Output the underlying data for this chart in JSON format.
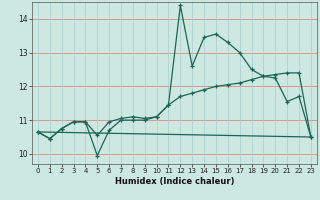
{
  "xlabel": "Humidex (Indice chaleur)",
  "x_ticks": [
    0,
    1,
    2,
    3,
    4,
    5,
    6,
    7,
    8,
    9,
    10,
    11,
    12,
    13,
    14,
    15,
    16,
    17,
    18,
    19,
    20,
    21,
    22,
    23
  ],
  "ylim": [
    9.7,
    14.5
  ],
  "yticks": [
    10,
    11,
    12,
    13,
    14
  ],
  "background_color": "#cce8e0",
  "hgrid_color": "#dd8888",
  "vgrid_color": "#aacccc",
  "line_color": "#1a6655",
  "line1_x": [
    0,
    1,
    2,
    3,
    4,
    5,
    6,
    7,
    8,
    9,
    10,
    11,
    12,
    13,
    14,
    15,
    16,
    17,
    18,
    19,
    20,
    21,
    22,
    23
  ],
  "line1_y": [
    10.65,
    10.45,
    10.75,
    10.95,
    10.95,
    9.95,
    10.7,
    11.0,
    11.0,
    11.0,
    11.1,
    11.45,
    14.4,
    12.6,
    13.45,
    13.55,
    13.3,
    13.0,
    12.5,
    12.3,
    12.25,
    11.55,
    11.7,
    10.5
  ],
  "line2_x": [
    0,
    1,
    2,
    3,
    4,
    5,
    6,
    7,
    8,
    9,
    10,
    11,
    12,
    13,
    14,
    15,
    16,
    17,
    18,
    19,
    20,
    21,
    22,
    23
  ],
  "line2_y": [
    10.65,
    10.45,
    10.75,
    10.95,
    10.95,
    10.55,
    10.95,
    11.05,
    11.1,
    11.05,
    11.1,
    11.45,
    11.7,
    11.8,
    11.9,
    12.0,
    12.05,
    12.1,
    12.2,
    12.3,
    12.35,
    12.4,
    12.4,
    10.5
  ],
  "line3_x": [
    0,
    23
  ],
  "line3_y": [
    10.65,
    10.5
  ]
}
